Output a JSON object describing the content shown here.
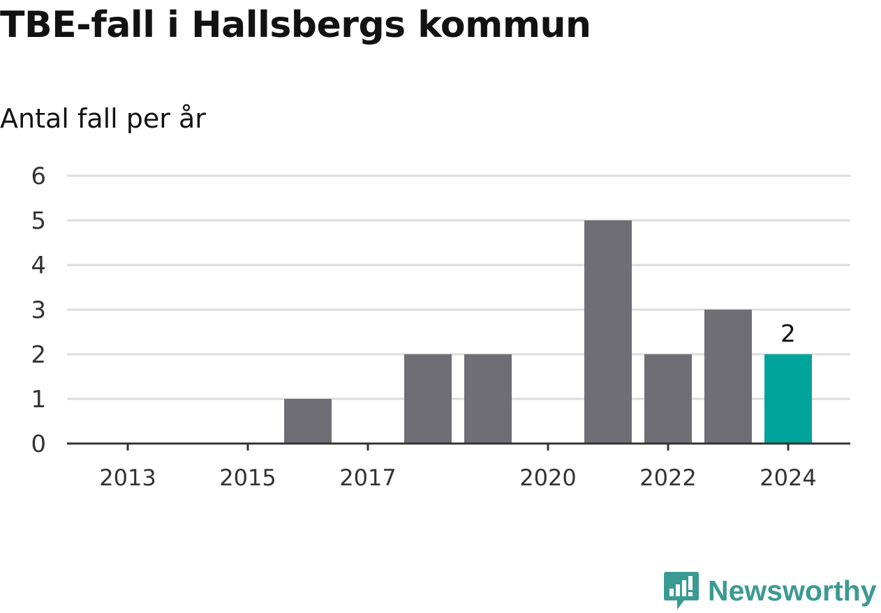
{
  "chart_data": {
    "type": "bar",
    "title": "TBE-fall i Hallsbergs kommun",
    "subtitle": "Antal fall per år",
    "categories": [
      2013,
      2014,
      2015,
      2016,
      2017,
      2018,
      2019,
      2020,
      2021,
      2022,
      2023,
      2024
    ],
    "x_tick_labels": [
      "2013",
      "2015",
      "2017",
      "2020",
      "2022",
      "2024"
    ],
    "values": [
      0,
      0,
      0,
      1,
      0,
      2,
      2,
      0,
      5,
      2,
      3,
      2
    ],
    "highlight": {
      "category": 2024,
      "label": "2"
    },
    "ylim": [
      0,
      6
    ],
    "y_ticks": [
      0,
      1,
      2,
      3,
      4,
      5,
      6
    ],
    "xlabel": "",
    "ylabel": "",
    "grid": true,
    "colors": {
      "bar": "#6f6e74",
      "highlight_bar": "#00a49a",
      "grid": "#dcdcdc",
      "axis": "#333333"
    }
  },
  "logo": {
    "text": "Newsworthy",
    "icon": "speech-bubble-bar-chart-icon",
    "color": "#3a9a93"
  }
}
